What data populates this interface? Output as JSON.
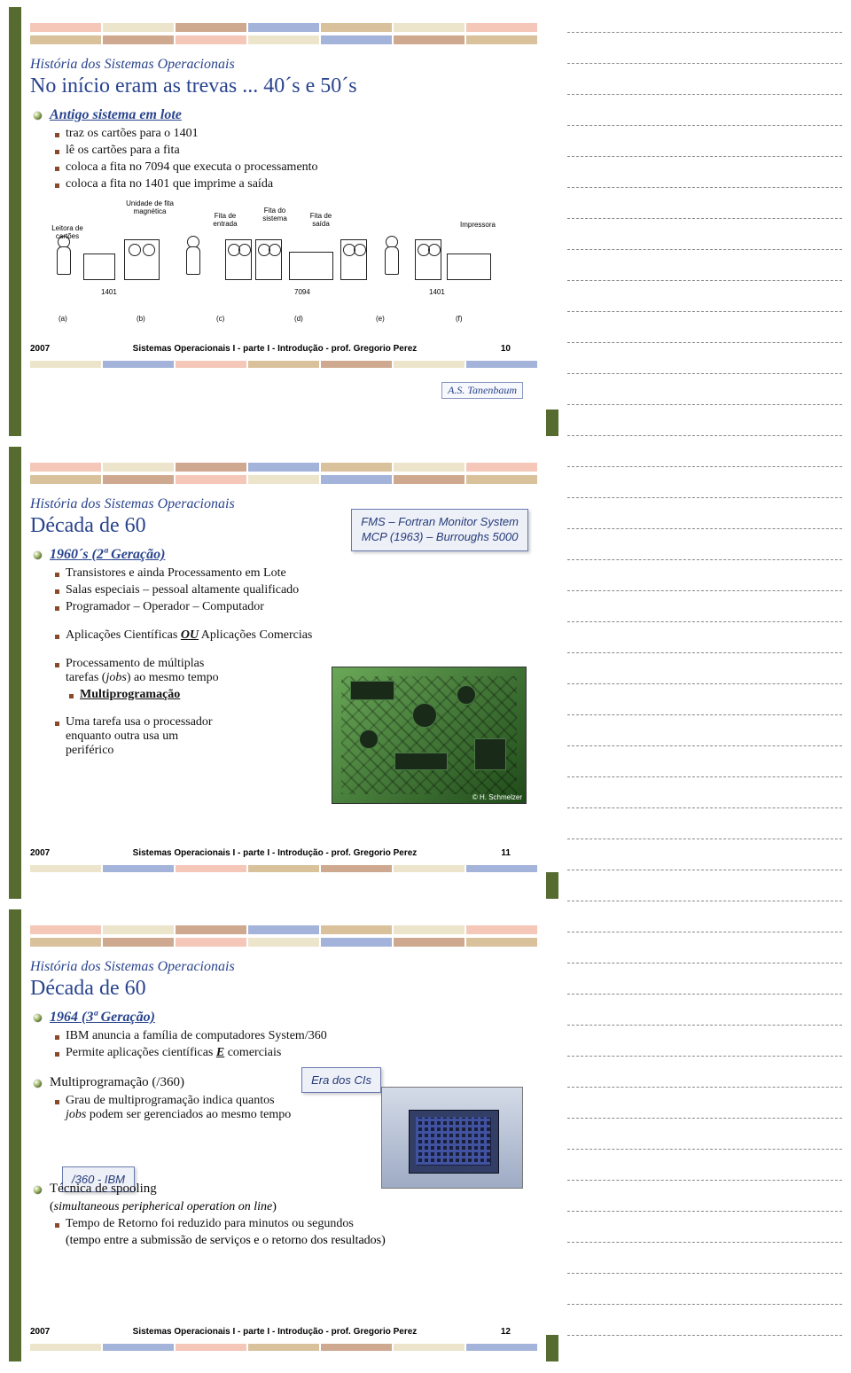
{
  "colors": {
    "title_blue": "#29448e",
    "accent_brown": "#8a4a2a",
    "bar_olive": "#556b2f",
    "decor": [
      "#f4c7b8",
      "#ece5cc",
      "#cfa98f",
      "#a3b3d9",
      "#d9c19c"
    ]
  },
  "slide1": {
    "supertitle": "História dos Sistemas Operacionais",
    "title": "No início eram as trevas ... 40´s e 50´s",
    "h1": "Antigo sistema em lote",
    "b1": "traz os cartões para o 1401",
    "b2": "lê os cartões para a fita",
    "b3": "coloca a fita no 7094 que executa o processamento",
    "b4": "coloca a fita no 1401 que imprime a saída",
    "credit": "A.S. Tanenbaum",
    "fig": {
      "labels": {
        "l1": "Leitora de cartões",
        "l2": "Unidade de fita magnética",
        "l3": "Fita de entrada",
        "l4": "Fita do sistema",
        "l5": "Fita de saída",
        "l6": "Impressora",
        "n1": "1401",
        "n2": "7094",
        "n3": "1401",
        "a": "(a)",
        "b": "(b)",
        "c": "(c)",
        "d": "(d)",
        "e": "(e)",
        "f": "(f)"
      }
    },
    "footer": {
      "year": "2007",
      "text": "Sistemas Operacionais I - parte I - Introdução - prof. Gregorio Perez",
      "page": "10"
    }
  },
  "slide2": {
    "supertitle": "História dos Sistemas Operacionais",
    "title": "Década de 60",
    "callout_l1": "FMS – Fortran Monitor System",
    "callout_l2": "MCP (1963) – Burroughs 5000",
    "h1": "1960´s (2ª Geração)",
    "b1": "Transistores e ainda Processamento em Lote",
    "b2": "Salas especiais – pessoal altamente qualificado",
    "b3": "Programador – Operador – Computador",
    "b4": "Aplicações Científicas ",
    "b4em": "OU",
    "b4b": " Aplicações Comercias",
    "b5a": "Processamento de múltiplas",
    "b5b_pre": "tarefas (",
    "b5b_em": "jobs",
    "b5b_post": ") ao mesmo tempo",
    "b5c": "Multiprogramação",
    "b6a": "Uma tarefa usa o processador",
    "b6b": "enquanto outra usa um",
    "b6c": "periférico",
    "pcb_caption": "© H. Schmelzer",
    "footer": {
      "year": "2007",
      "text": "Sistemas Operacionais I - parte I - Introdução - prof. Gregorio Perez",
      "page": "11"
    }
  },
  "slide3": {
    "supertitle": "História dos Sistemas Operacionais",
    "title": "Década de 60",
    "h1": "1964 (3ª Geração)",
    "b1": "IBM anuncia a família de  computadores System/360",
    "b2_pre": "Permite aplicações científicas ",
    "b2_em": "E",
    "b2_post": " comerciais",
    "h2": "Multiprogramação (/360)",
    "b3a": "Grau de multiprogramação indica quantos",
    "b3b_em": "jobs",
    "b3b_post": " podem ser gerenciados ao mesmo tempo",
    "callout1": "Era dos CIs",
    "callout2": "/360 - IBM",
    "h3_pre": "Técnica de ",
    "h3_em": "spooling",
    "p1_pre": "(",
    "p1_em": "simultaneous peripherical operation on line",
    "p1_post": ")",
    "b4": "Tempo de Retorno foi reduzido para minutos ou segundos",
    "b5": "(tempo entre a submissão de serviços e o retorno dos resultados)",
    "footer": {
      "year": "2007",
      "text": "Sistemas Operacionais I - parte I - Introdução - prof. Gregorio Perez",
      "page": "12"
    }
  },
  "notes": {
    "rows": 43
  }
}
